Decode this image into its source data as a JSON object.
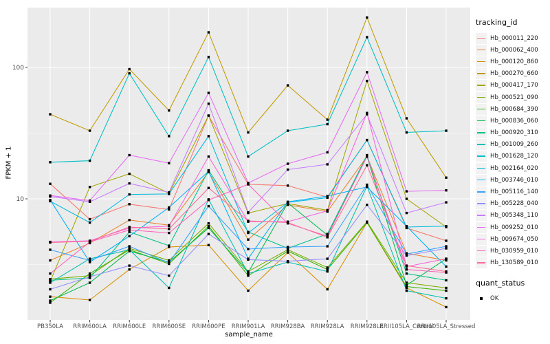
{
  "chart_data": {
    "type": "line",
    "title": "",
    "xlabel": "sample_name",
    "ylabel": "FPKM + 1",
    "y_scale": "log10",
    "y_ticks": [
      100,
      10
    ],
    "y_minor_gridlines": [
      31.62,
      3.162
    ],
    "ylim": [
      1.2,
      282
    ],
    "grid": true,
    "panel_bg": "#EBEBEB",
    "grid_color": "#FFFFFF",
    "axis_text_color": "#4d4d4d",
    "point_marker": "square",
    "point_color": "#000000",
    "categories": [
      "PB350LA",
      "RRIM600LA",
      "RRIM600LE",
      "RRIM600SE",
      "RRIM600PE",
      "RRIM901LA",
      "RRIM928BA",
      "RRIM928LA",
      "RRIM928LE",
      "RRII105LA_Control",
      "RRII105LA_Stressed"
    ],
    "legend": {
      "title": "tracking_id",
      "position": "right"
    },
    "quant_legend": {
      "title": "quant_status",
      "items": [
        {
          "label": "OK",
          "marker": "black-square"
        }
      ]
    },
    "series": [
      {
        "name": "Hb_000011_220",
        "color": "#F8766D",
        "values": [
          13,
          7.0,
          9.1,
          8.3,
          43,
          12.9,
          12.6,
          10.3,
          28,
          6.0,
          4.8
        ]
      },
      {
        "name": "Hb_000062_400",
        "color": "#EA8331",
        "values": [
          3.4,
          4.6,
          6.9,
          6.3,
          16,
          4.9,
          9.0,
          8.0,
          21,
          3.85,
          3.4
        ]
      },
      {
        "name": "Hb_000120_860",
        "color": "#D89000",
        "values": [
          1.8,
          1.7,
          2.9,
          4.3,
          4.45,
          2.0,
          3.9,
          2.05,
          6.6,
          2.1,
          1.5
        ]
      },
      {
        "name": "Hb_000270_660",
        "color": "#C09B00",
        "values": [
          44,
          33,
          97,
          47,
          185,
          32,
          73,
          40,
          240,
          41,
          14.5
        ]
      },
      {
        "name": "Hb_000417_170",
        "color": "#A3A500",
        "values": [
          2.35,
          12.3,
          15.5,
          11.0,
          43,
          7.8,
          9.2,
          8.2,
          79,
          10.0,
          6.1
        ]
      },
      {
        "name": "Hb_000521_090",
        "color": "#7CAE00",
        "values": [
          2.45,
          2.6,
          4.2,
          3.4,
          6.5,
          2.8,
          4.1,
          3.0,
          6.7,
          2.3,
          2.1
        ]
      },
      {
        "name": "Hb_000684_390",
        "color": "#39B600",
        "values": [
          1.62,
          2.7,
          4.1,
          3.2,
          6.2,
          2.6,
          4.0,
          2.9,
          6.6,
          2.15,
          2.0
        ]
      },
      {
        "name": "Hb_000836_060",
        "color": "#00BB4E",
        "values": [
          1.68,
          2.3,
          4.0,
          3.3,
          6.0,
          2.75,
          9.3,
          5.3,
          21,
          2.2,
          3.5
        ]
      },
      {
        "name": "Hb_000920_310",
        "color": "#00C087",
        "values": [
          2.4,
          2.5,
          5.6,
          4.4,
          16.5,
          5.6,
          4.2,
          5.4,
          21.5,
          2.7,
          2.4
        ]
      },
      {
        "name": "Hb_001009_260",
        "color": "#00C0AF",
        "values": [
          2.3,
          3.5,
          4.1,
          2.1,
          9.9,
          2.7,
          3.3,
          2.8,
          12.5,
          2.0,
          1.75
        ]
      },
      {
        "name": "Hb_001628_120",
        "color": "#00BFC4",
        "values": [
          19,
          19.5,
          90,
          30,
          120,
          21,
          33,
          37,
          170,
          32,
          33
        ]
      },
      {
        "name": "Hb_002164_020",
        "color": "#00BADE",
        "values": [
          9.6,
          6.6,
          10.8,
          10.9,
          30,
          5.5,
          9.4,
          10.2,
          28,
          6.1,
          6.2
        ]
      },
      {
        "name": "Hb_003746_010",
        "color": "#00B0F6",
        "values": [
          9.8,
          3.3,
          5.2,
          8.6,
          16.2,
          3.5,
          9.5,
          10.5,
          12.3,
          6.2,
          3.05
        ]
      },
      {
        "name": "Hb_005116_140",
        "color": "#35A2FF",
        "values": [
          4.1,
          3.4,
          4.35,
          3.25,
          8.8,
          4.15,
          4.3,
          4.35,
          12.8,
          3.8,
          4.35
        ]
      },
      {
        "name": "Hb_005228_040",
        "color": "#9590FF",
        "values": [
          2.05,
          2.55,
          3.1,
          2.6,
          5.4,
          3.45,
          3.35,
          3.5,
          9.0,
          3.7,
          4.2
        ]
      },
      {
        "name": "Hb_005348_110",
        "color": "#C77CFF",
        "values": [
          10.4,
          9.5,
          13.1,
          11.2,
          53,
          7.9,
          16.7,
          18.3,
          44,
          7.8,
          9.4
        ]
      },
      {
        "name": "Hb_009252_010",
        "color": "#E76BF3",
        "values": [
          10.6,
          9.7,
          21.5,
          18.7,
          64,
          13.2,
          18.5,
          22.6,
          92,
          11.4,
          11.6
        ]
      },
      {
        "name": "Hb_009674_050",
        "color": "#FA62DB",
        "values": [
          4.7,
          4.8,
          6.0,
          6.2,
          21,
          6.7,
          6.7,
          8.1,
          45,
          3.05,
          3.5
        ]
      },
      {
        "name": "Hb_030959_010",
        "color": "#FF62BC",
        "values": [
          2.7,
          4.7,
          5.8,
          5.5,
          9.8,
          12.9,
          6.5,
          5.2,
          21,
          2.9,
          2.75
        ]
      },
      {
        "name": "Hb_130589_010",
        "color": "#FF6A98",
        "values": [
          4.65,
          4.75,
          6.1,
          5.9,
          12.1,
          6.8,
          6.6,
          5.1,
          18,
          3.1,
          2.8
        ]
      }
    ]
  }
}
